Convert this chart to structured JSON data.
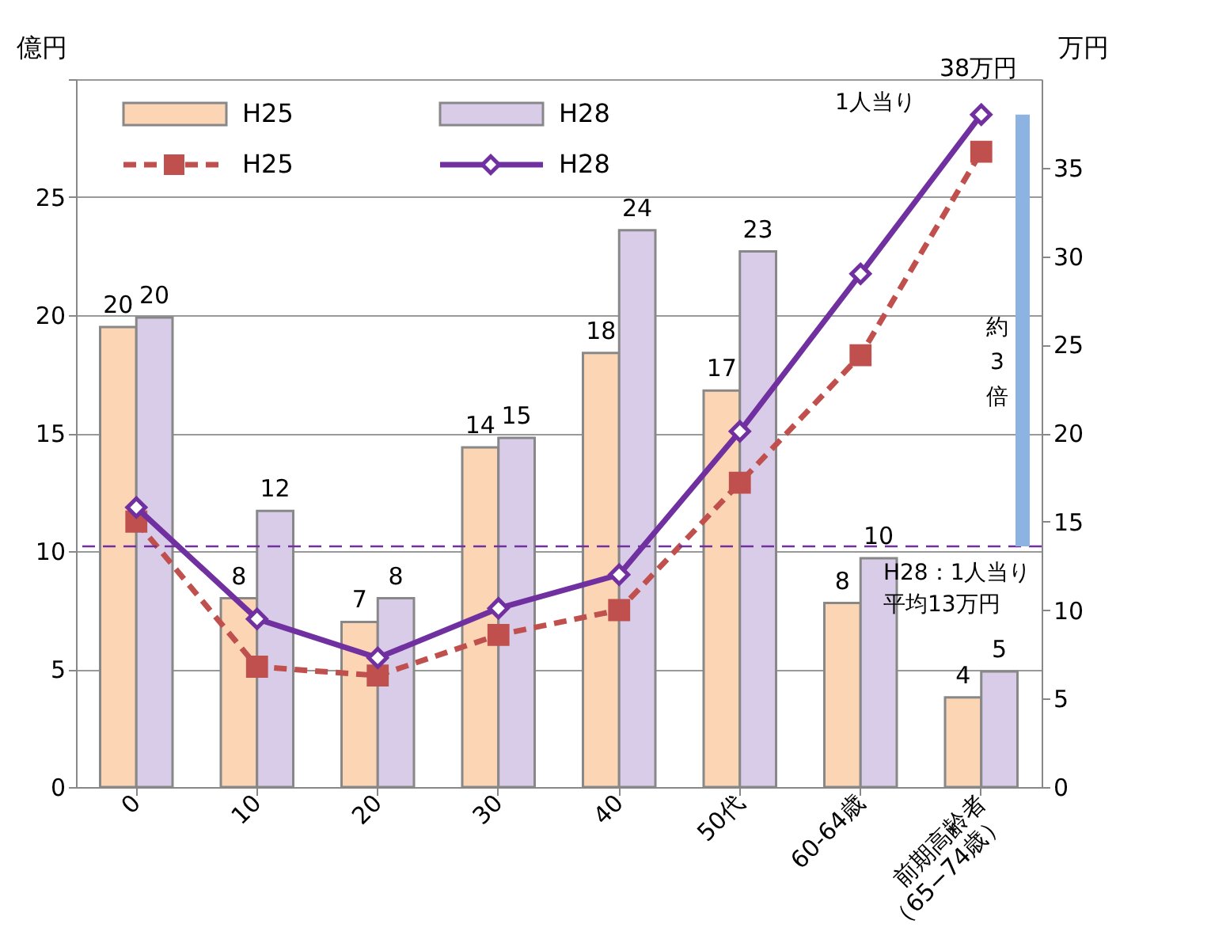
{
  "chart_data": {
    "type": "bar",
    "categories": [
      "0",
      "10",
      "20",
      "30",
      "40",
      "50代",
      "60-64歳",
      "前期高齢者\n（65−74歳）"
    ],
    "ylabel": "億円",
    "y2label": "万円",
    "ylim": [
      0,
      30
    ],
    "yticks": [
      0,
      5,
      10,
      15,
      20,
      25,
      {
        "value": 30,
        "label": null
      }
    ],
    "y2lim": [
      0,
      40
    ],
    "y2ticks": [
      0,
      5,
      10,
      15,
      20,
      25,
      30,
      35
    ],
    "series": [
      {
        "name": "H25",
        "color": "#fcd5b5",
        "values": [
          19.5,
          8.0,
          7.0,
          14.4,
          18.4,
          16.8,
          7.8,
          3.8
        ],
        "value_labels": [
          "20",
          "8",
          "7",
          "14",
          "18",
          "17",
          "8",
          "4"
        ]
      },
      {
        "name": "H28",
        "color": "#d9cce8",
        "values": [
          19.9,
          11.7,
          8.0,
          14.8,
          23.6,
          22.7,
          9.7,
          4.9
        ],
        "value_labels": [
          "20",
          "12",
          "8",
          "15",
          "24",
          "23",
          "10",
          "5"
        ]
      },
      {
        "name": "H25",
        "type": "line",
        "axis": "y2",
        "color": "#c0504d",
        "line_style": "dashed",
        "marker": "square",
        "values": [
          15.0,
          6.8,
          6.3,
          8.6,
          10.0,
          17.2,
          24.4,
          35.9
        ]
      },
      {
        "name": "H28",
        "type": "line",
        "axis": "y2",
        "color": "#7030a0",
        "line_style": "solid",
        "marker": "diamond",
        "values": [
          15.8,
          9.5,
          7.3,
          10.1,
          12.0,
          20.1,
          29.0,
          38.0
        ]
      }
    ],
    "ref_lines": [
      {
        "axis": "y2",
        "value": 13.6,
        "label": "H28：1人当り平均13万円",
        "color": "#7030a0",
        "line_style": "dashed"
      }
    ],
    "annotations": [
      "38万円",
      "1人当り",
      "約3倍"
    ],
    "grid": "y",
    "legend": "top left"
  }
}
